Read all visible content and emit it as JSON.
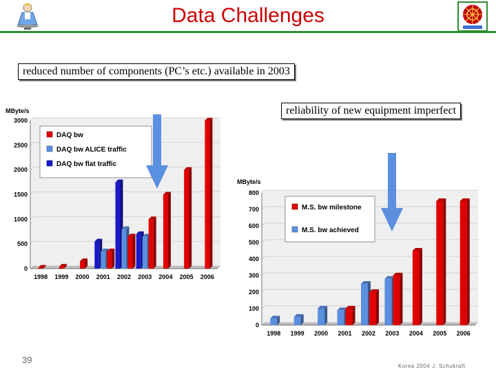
{
  "slide": {
    "title": "Data Challenges",
    "note_components": "reduced number of components (PC’s etc.) available in 2003",
    "note_reliability": "reliability of new equipment imperfect",
    "page_number": "39",
    "footer": "Korea 2004 J. Schukraft",
    "accent_color": "#cc0000",
    "rule_color": "#2e8b2e",
    "arrow_color": "#5b8fe0"
  },
  "chart_data": [
    {
      "type": "bar",
      "title": "",
      "ylabel": "MByte/s",
      "xlabel": "",
      "ylim": [
        0,
        3000
      ],
      "yticks": [
        0,
        500,
        1000,
        1500,
        2000,
        2500,
        3000
      ],
      "categories": [
        "1998",
        "1999",
        "2000",
        "2001",
        "2002",
        "2003",
        "2004",
        "2005",
        "2006"
      ],
      "legend_position": "top-left",
      "series": [
        {
          "name": "DAQ bw",
          "color": "#e00000",
          "values": [
            20,
            40,
            150,
            350,
            650,
            1000,
            1500,
            2000,
            3000
          ]
        },
        {
          "name": "DAQ bw ALICE traffic",
          "color": "#5b8fe0",
          "values": [
            null,
            null,
            null,
            350,
            800,
            650,
            null,
            null,
            null
          ]
        },
        {
          "name": "DAQ bw flat traffic",
          "color": "#1a1ac8",
          "values": [
            null,
            null,
            null,
            550,
            1750,
            700,
            null,
            null,
            null
          ]
        }
      ]
    },
    {
      "type": "bar",
      "title": "",
      "ylabel": "MByte/s",
      "xlabel": "",
      "ylim": [
        0,
        800
      ],
      "yticks": [
        0,
        100,
        200,
        300,
        400,
        500,
        600,
        700,
        800
      ],
      "categories": [
        "1998",
        "1999",
        "2000",
        "2001",
        "2002",
        "2003",
        "2004",
        "2005",
        "2006"
      ],
      "legend_position": "top-left",
      "series": [
        {
          "name": "M.S. bw milestone",
          "color": "#e00000",
          "values": [
            null,
            null,
            null,
            100,
            200,
            300,
            450,
            750,
            750
          ]
        },
        {
          "name": "M.S. bw achieved",
          "color": "#5b8fe0",
          "values": [
            40,
            50,
            100,
            90,
            250,
            280,
            null,
            null,
            null
          ]
        }
      ]
    }
  ]
}
